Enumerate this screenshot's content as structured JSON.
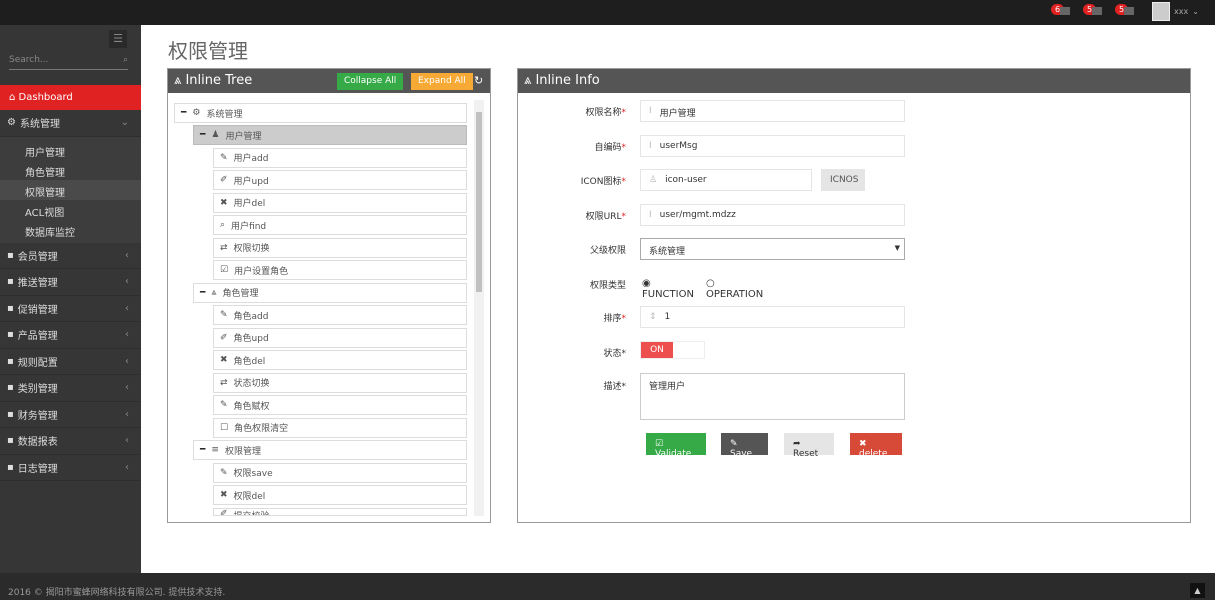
{
  "topbar": {
    "badges": [
      {
        "count": "6",
        "icon": "bell-icon"
      },
      {
        "count": "5",
        "icon": "envelope-icon"
      },
      {
        "count": "5",
        "icon": "tasks-icon"
      }
    ],
    "user": "xxx"
  },
  "sidebar": {
    "search_placeholder": "Search...",
    "dashboard": "Dashboard",
    "system": {
      "label": "系统管理",
      "items": [
        "用户管理",
        "角色管理",
        "权限管理",
        "ACL视图",
        "数据库监控"
      ],
      "active": "权限管理"
    },
    "menu": [
      "会员管理",
      "推送管理",
      "促销管理",
      "产品管理",
      "规则配置",
      "类别管理",
      "财务管理",
      "数据报表",
      "日志管理"
    ]
  },
  "page_title": "权限管理",
  "tree": {
    "title": "Inline Tree",
    "collapse": "Collapse All",
    "expand": "Expand All",
    "root": "系统管理",
    "nodes": [
      {
        "label": "用户管理",
        "level": 1,
        "icon": "user-icon",
        "selected": true
      },
      {
        "label": "用户add",
        "level": 2,
        "icon": "pencil-icon"
      },
      {
        "label": "用户upd",
        "level": 2,
        "icon": "edit-icon"
      },
      {
        "label": "用户del",
        "level": 2,
        "icon": "times-icon"
      },
      {
        "label": "用户find",
        "level": 2,
        "icon": "search-icon"
      },
      {
        "label": "权限切换",
        "level": 2,
        "icon": "retweet-icon"
      },
      {
        "label": "用户设置角色",
        "level": 2,
        "icon": "check-square-icon"
      },
      {
        "label": "角色管理",
        "level": 1,
        "icon": "sitemap-icon"
      },
      {
        "label": "角色add",
        "level": 2,
        "icon": "pencil-icon"
      },
      {
        "label": "角色upd",
        "level": 2,
        "icon": "edit-icon"
      },
      {
        "label": "角色del",
        "level": 2,
        "icon": "times-icon"
      },
      {
        "label": "状态切换",
        "level": 2,
        "icon": "retweet-icon"
      },
      {
        "label": "角色赋权",
        "level": 2,
        "icon": "pencil-icon"
      },
      {
        "label": "角色权限清空",
        "level": 2,
        "icon": "square-icon"
      },
      {
        "label": "权限管理",
        "level": 1,
        "icon": "list-icon"
      },
      {
        "label": "权限save",
        "level": 2,
        "icon": "pencil-icon"
      },
      {
        "label": "权限del",
        "level": 2,
        "icon": "times-icon"
      },
      {
        "label": "提交校验",
        "level": 2,
        "icon": "edit-icon"
      }
    ]
  },
  "info": {
    "title": "Inline Info",
    "name_label": "权限名称",
    "name": "用户管理",
    "code_label": "自编码",
    "code": "userMsg",
    "icon_label": "ICON图标",
    "icon": "icon-user",
    "icnos": "ICNOS",
    "url_label": "权限URL",
    "url": "user/mgmt.mdzz",
    "parent_label": "父级权限",
    "parent": "系统管理",
    "type_label": "权限类型",
    "type_options": [
      "FUNCTION",
      "OPERATION"
    ],
    "type_selected": "FUNCTION",
    "order_label": "排序",
    "order": "1",
    "status_label": "状态*",
    "status": "ON",
    "desc_label": "描述*",
    "desc": "管理用户",
    "required": "*",
    "validate": "Validate",
    "save": "Save",
    "reset": "Reset",
    "delete": "delete"
  },
  "footer": "2016 © 揭阳市蜜蜂网络科技有限公司. 提供技术支持."
}
